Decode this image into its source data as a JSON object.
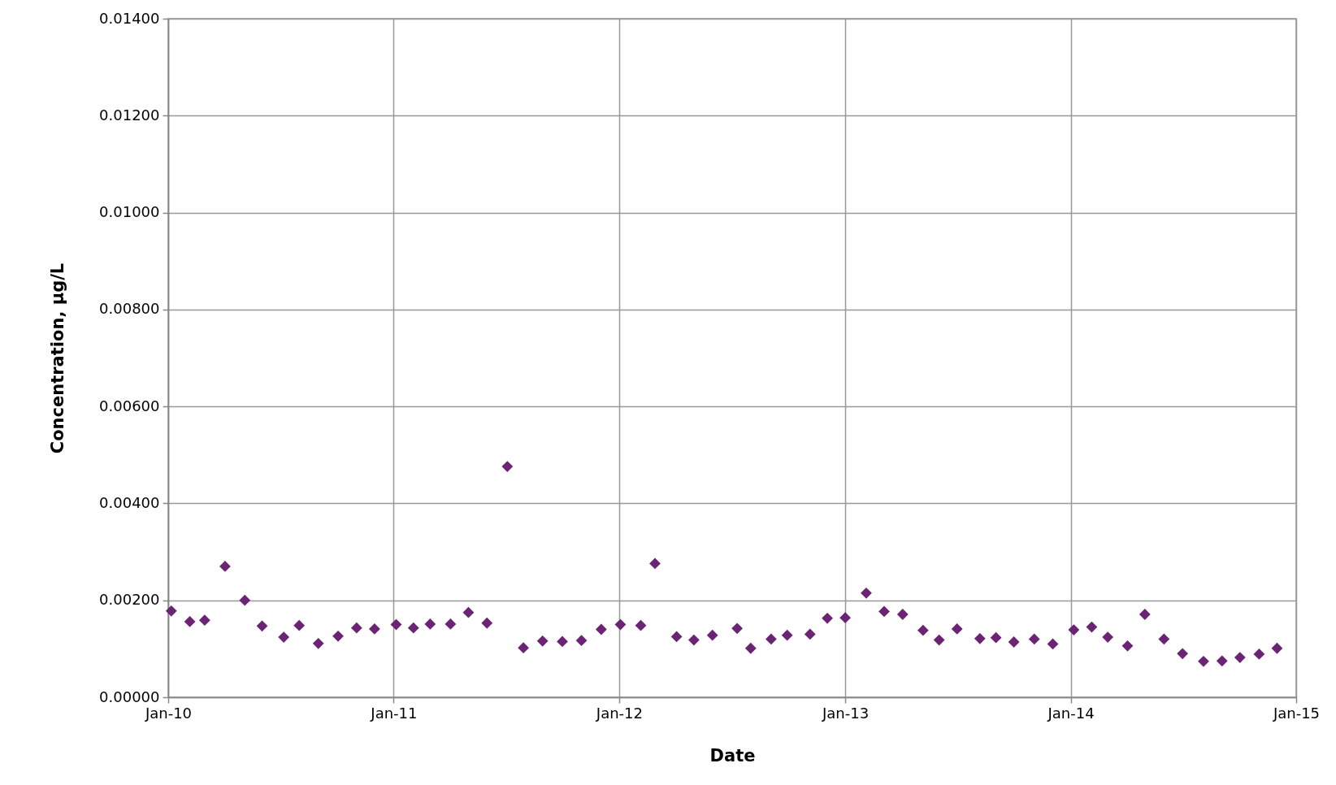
{
  "chart_data": {
    "type": "scatter",
    "xlabel": "Date",
    "ylabel": "Concentration, µg/L",
    "marker": "diamond",
    "grid": true,
    "xlim": [
      "2010-01-01",
      "2015-01-01"
    ],
    "xticks": [
      {
        "value": "2010-01-01",
        "label": "Jan-10"
      },
      {
        "value": "2011-01-01",
        "label": "Jan-11"
      },
      {
        "value": "2012-01-01",
        "label": "Jan-12"
      },
      {
        "value": "2013-01-01",
        "label": "Jan-13"
      },
      {
        "value": "2014-01-01",
        "label": "Jan-14"
      },
      {
        "value": "2015-01-01",
        "label": "Jan-15"
      }
    ],
    "ylim": [
      0,
      0.014
    ],
    "yticks": [
      {
        "value": 0,
        "label": "0.00000"
      },
      {
        "value": 0.002,
        "label": "0.00200"
      },
      {
        "value": 0.004,
        "label": "0.00400"
      },
      {
        "value": 0.006,
        "label": "0.00600"
      },
      {
        "value": 0.008,
        "label": "0.00800"
      },
      {
        "value": 0.01,
        "label": "0.01000"
      },
      {
        "value": 0.012,
        "label": "0.01200"
      },
      {
        "value": 0.014,
        "label": "0.01400"
      }
    ],
    "x": [
      "2010-01-06",
      "2010-02-05",
      "2010-03-01",
      "2010-04-03",
      "2010-05-05",
      "2010-06-02",
      "2010-07-07",
      "2010-08-01",
      "2010-09-01",
      "2010-10-03",
      "2010-11-02",
      "2010-12-01",
      "2011-01-05",
      "2011-02-02",
      "2011-03-01",
      "2011-04-03",
      "2011-05-02",
      "2011-06-01",
      "2011-07-04",
      "2011-07-30",
      "2011-08-30",
      "2011-10-01",
      "2011-11-01",
      "2011-12-03",
      "2012-01-03",
      "2012-02-05",
      "2012-02-28",
      "2012-04-03",
      "2012-05-01",
      "2012-05-31",
      "2012-07-10",
      "2012-08-01",
      "2012-09-03",
      "2012-09-29",
      "2012-11-05",
      "2012-12-03",
      "2013-01-01",
      "2013-02-04",
      "2013-03-05",
      "2013-04-04",
      "2013-05-07",
      "2013-06-02",
      "2013-07-01",
      "2013-08-07",
      "2013-09-02",
      "2013-10-01",
      "2013-11-03",
      "2013-12-03",
      "2014-01-06",
      "2014-02-04",
      "2014-03-02",
      "2014-04-03",
      "2014-05-01",
      "2014-06-01",
      "2014-07-01",
      "2014-08-04",
      "2014-09-03",
      "2014-10-02",
      "2014-11-02",
      "2014-12-01"
    ],
    "series": [
      {
        "color": "#6b2474",
        "values": [
          0.00178,
          0.00156,
          0.00159,
          0.0027,
          0.002,
          0.00147,
          0.00124,
          0.00148,
          0.00111,
          0.00126,
          0.00143,
          0.00141,
          0.0015,
          0.00143,
          0.00151,
          0.00151,
          0.00175,
          0.00153,
          0.00476,
          0.00102,
          0.00116,
          0.00115,
          0.00117,
          0.0014,
          0.0015,
          0.00148,
          0.00276,
          0.00125,
          0.00118,
          0.00128,
          0.00142,
          0.00101,
          0.0012,
          0.00128,
          0.0013,
          0.00163,
          0.00164,
          0.00215,
          0.00177,
          0.00171,
          0.00138,
          0.00118,
          0.00141,
          0.00121,
          0.00123,
          0.00114,
          0.0012,
          0.0011,
          0.00139,
          0.00145,
          0.00124,
          0.00106,
          0.00171,
          0.0012,
          0.0009,
          0.00074,
          0.00075,
          0.00082,
          0.00089,
          0.00101
        ]
      }
    ]
  }
}
